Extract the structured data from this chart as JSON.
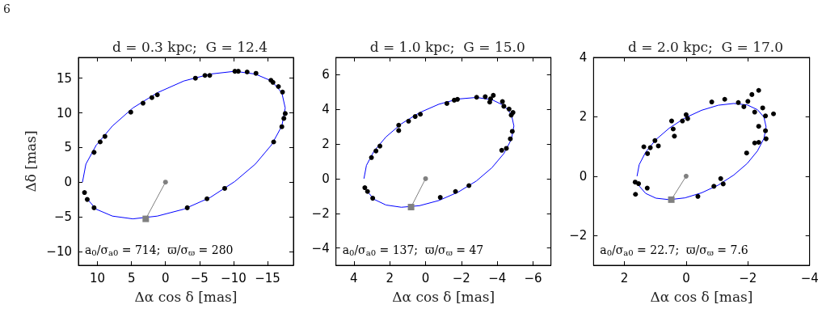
{
  "chart_data": [
    {
      "type": "scatter",
      "title": "d = 0.3 kpc;  G = 12.4",
      "xlabel": "Δα cos δ [mas]",
      "ylabel": "Δδ [mas]",
      "annotations": [
        "a$_{0}$/σ$_{a0}$ = 714;  ϖ/σ$_{ϖ}$ = 280",
        "6"
      ],
      "xlim": [
        12.8,
        -18.8
      ],
      "ylim": [
        -12,
        18
      ],
      "xticks": [
        10,
        5,
        0,
        -5,
        -10,
        -15
      ],
      "yticks": [
        -10,
        -5,
        0,
        5,
        10,
        15
      ],
      "series": [
        {
          "type": "line",
          "color": "#0000ff",
          "x": [
            12.2,
            11.7,
            10.2,
            7.8,
            4.8,
            1.2,
            -2.7,
            -6.6,
            -10.2,
            -13.2,
            -15.6,
            -17.1,
            -17.6,
            -17.1,
            -15.6,
            -13.2,
            -10.2,
            -6.6,
            -2.7,
            1.2,
            4.8,
            7.8,
            10.2,
            11.7
          ],
          "values": [
            0,
            2.6,
            5.3,
            8.1,
            10.7,
            12.9,
            14.6,
            15.6,
            16.0,
            15.6,
            14.6,
            12.9,
            10.7,
            8.1,
            5.4,
            2.6,
            0.1,
            -2.2,
            -3.9,
            -4.9,
            -5.3,
            -4.9,
            -3.9,
            -2.2
          ]
        },
        {
          "type": "scatter",
          "color": "#000000",
          "marker": "circle",
          "x": [
            11.9,
            11.5,
            10.5,
            10.5,
            9.6,
            8.9,
            5.1,
            3.3,
            2.0,
            1.2,
            -4.4,
            -5.8,
            -6.5,
            -10.2,
            -10.7,
            -12.0,
            -13.3,
            -15.5,
            -15.8,
            -16.6,
            -17.2,
            -17.6,
            -17.4,
            -17.1,
            -15.9,
            -8.7,
            -6.1,
            -3.2
          ],
          "values": [
            -1.5,
            -2.5,
            -3.7,
            4.3,
            5.8,
            6.6,
            10.1,
            11.4,
            12.2,
            12.6,
            15.0,
            15.4,
            15.4,
            16.0,
            16.0,
            15.9,
            15.7,
            14.7,
            14.4,
            13.8,
            13.0,
            9.9,
            9.2,
            8.0,
            5.8,
            -0.9,
            -2.4,
            -3.7
          ]
        },
        {
          "type": "line",
          "color": "#808080",
          "x": [
            0,
            2.9
          ],
          "values": [
            0,
            -5.3
          ]
        },
        {
          "type": "scatter",
          "color": "#808080",
          "marker": "circle",
          "x": [
            0
          ],
          "values": [
            0
          ]
        },
        {
          "type": "scatter",
          "color": "#808080",
          "marker": "square",
          "x": [
            2.9
          ],
          "values": [
            -5.3
          ]
        }
      ]
    },
    {
      "type": "scatter",
      "title": "d = 1.0 kpc;  G = 15.0",
      "xlabel": "Δα cos δ [mas]",
      "annotations": [
        "a$_{0}$/σ$_{a0}$ = 137;  ϖ/σ$_{ϖ}$ = 47"
      ],
      "xlim": [
        5,
        -7
      ],
      "ylim": [
        -5,
        7
      ],
      "xticks": [
        4,
        2,
        0,
        -2,
        -4,
        -6
      ],
      "yticks": [
        -4,
        -2,
        0,
        2,
        4,
        6
      ],
      "series": [
        {
          "type": "line",
          "color": "#0000ff",
          "x": [
            3.44,
            3.3,
            2.88,
            2.21,
            1.35,
            0.34,
            -0.745,
            -1.83,
            -2.84,
            -3.7,
            -4.37,
            -4.79,
            -4.93,
            -4.79,
            -4.37,
            -3.7,
            -2.84,
            -1.83,
            -0.745,
            0.34,
            1.35,
            2.21,
            2.88,
            3.3
          ],
          "values": [
            0,
            0.77,
            1.59,
            2.41,
            3.17,
            3.81,
            4.3,
            4.6,
            4.69,
            4.56,
            4.23,
            3.71,
            3.04,
            2.27,
            1.45,
            0.63,
            -0.13,
            -0.77,
            -1.26,
            -1.56,
            -1.65,
            -1.52,
            -1.19,
            -0.67
          ]
        },
        {
          "type": "scatter",
          "color": "#000000",
          "marker": "circle",
          "x": [
            3.39,
            3.24,
            2.95,
            3.02,
            2.77,
            2.55,
            1.5,
            1.5,
            0.95,
            0.58,
            0.29,
            -1.19,
            -1.6,
            -1.78,
            -2.85,
            -3.33,
            -3.63,
            -3.78,
            -3.58,
            -4.29,
            -4.37,
            -4.66,
            -4.88,
            -4.78,
            -4.84,
            -4.73,
            -4.51,
            -4.25,
            -2.42,
            -1.67,
            -0.82
          ],
          "values": [
            -0.52,
            -0.74,
            -1.13,
            1.22,
            1.6,
            1.88,
            3.09,
            2.78,
            3.32,
            3.59,
            3.72,
            4.34,
            4.53,
            4.58,
            4.7,
            4.73,
            4.61,
            4.81,
            4.42,
            4.45,
            4.18,
            4.02,
            3.82,
            3.67,
            2.73,
            2.3,
            1.75,
            1.64,
            -0.4,
            -0.74,
            -1.08
          ]
        },
        {
          "type": "line",
          "color": "#808080",
          "x": [
            0,
            0.81
          ],
          "values": [
            0,
            -1.64
          ]
        },
        {
          "type": "scatter",
          "color": "#808080",
          "marker": "circle",
          "x": [
            0
          ],
          "values": [
            0
          ]
        },
        {
          "type": "scatter",
          "color": "#808080",
          "marker": "square",
          "x": [
            0.81
          ],
          "values": [
            -1.64
          ]
        }
      ]
    },
    {
      "type": "scatter",
      "title": "d = 2.0 kpc;  G = 17.0",
      "xlabel": "Δα cos δ [mas]",
      "annotations": [
        "a$_{0}$/σ$_{a0}$ = 22.7;  ϖ/σ$_{ϖ}$ = 7.6"
      ],
      "xlim": [
        3,
        -4
      ],
      "ylim": [
        -3,
        4
      ],
      "xticks": [
        2,
        0,
        -2,
        -4
      ],
      "yticks": [
        -2,
        0,
        2,
        4
      ],
      "series": [
        {
          "type": "line",
          "color": "#0000ff",
          "x": [
            1.59,
            1.52,
            1.31,
            0.98,
            0.545,
            0.04,
            -0.5,
            -1.04,
            -1.545,
            -1.98,
            -2.31,
            -2.52,
            -2.59,
            -2.52,
            -2.31,
            -1.98,
            -1.545,
            -1.04,
            -0.5,
            0.04,
            0.545,
            0.98,
            1.31,
            1.52
          ],
          "values": [
            0,
            0.39,
            0.81,
            1.23,
            1.62,
            1.96,
            2.22,
            2.39,
            2.45,
            2.4,
            2.24,
            1.99,
            1.66,
            1.27,
            0.85,
            0.43,
            0.04,
            -0.3,
            -0.56,
            -0.73,
            -0.79,
            -0.74,
            -0.58,
            -0.33
          ]
        },
        {
          "type": "scatter",
          "color": "#000000",
          "marker": "circle",
          "x": [
            1.64,
            1.65,
            1.54,
            1.26,
            1.37,
            1.25,
            1.16,
            1.01,
            0.9,
            0.47,
            0.42,
            0.38,
            0.12,
            0,
            -0.05,
            -0.83,
            -1.25,
            -1.69,
            -1.87,
            -2,
            -2.13,
            -2.35,
            -2.22,
            -2.48,
            -2.57,
            -2.83,
            -2.35,
            -2.57,
            -2.59,
            -2.35,
            -2.22,
            -1.96,
            -1.12,
            -1.2,
            -0.9,
            -0.38
          ],
          "values": [
            -0.61,
            -0.2,
            -0.25,
            -0.4,
            0.99,
            0.76,
            0.96,
            1.2,
            1.02,
            1.86,
            1.59,
            1.35,
            1.86,
            2.07,
            1.94,
            2.5,
            2.59,
            2.48,
            2.34,
            2.52,
            2.75,
            2.89,
            2.16,
            2.3,
            2.03,
            2.1,
            1.68,
            1.53,
            1.26,
            1.14,
            1.12,
            0.78,
            -0.08,
            -0.26,
            -0.34,
            -0.68
          ]
        },
        {
          "type": "line",
          "color": "#808080",
          "x": [
            0,
            0.48
          ],
          "values": [
            0,
            -0.79
          ]
        },
        {
          "type": "scatter",
          "color": "#808080",
          "marker": "circle",
          "x": [
            0
          ],
          "values": [
            0
          ]
        },
        {
          "type": "scatter",
          "color": "#808080",
          "marker": "square",
          "x": [
            0.48
          ],
          "values": [
            -0.79
          ]
        }
      ]
    }
  ]
}
